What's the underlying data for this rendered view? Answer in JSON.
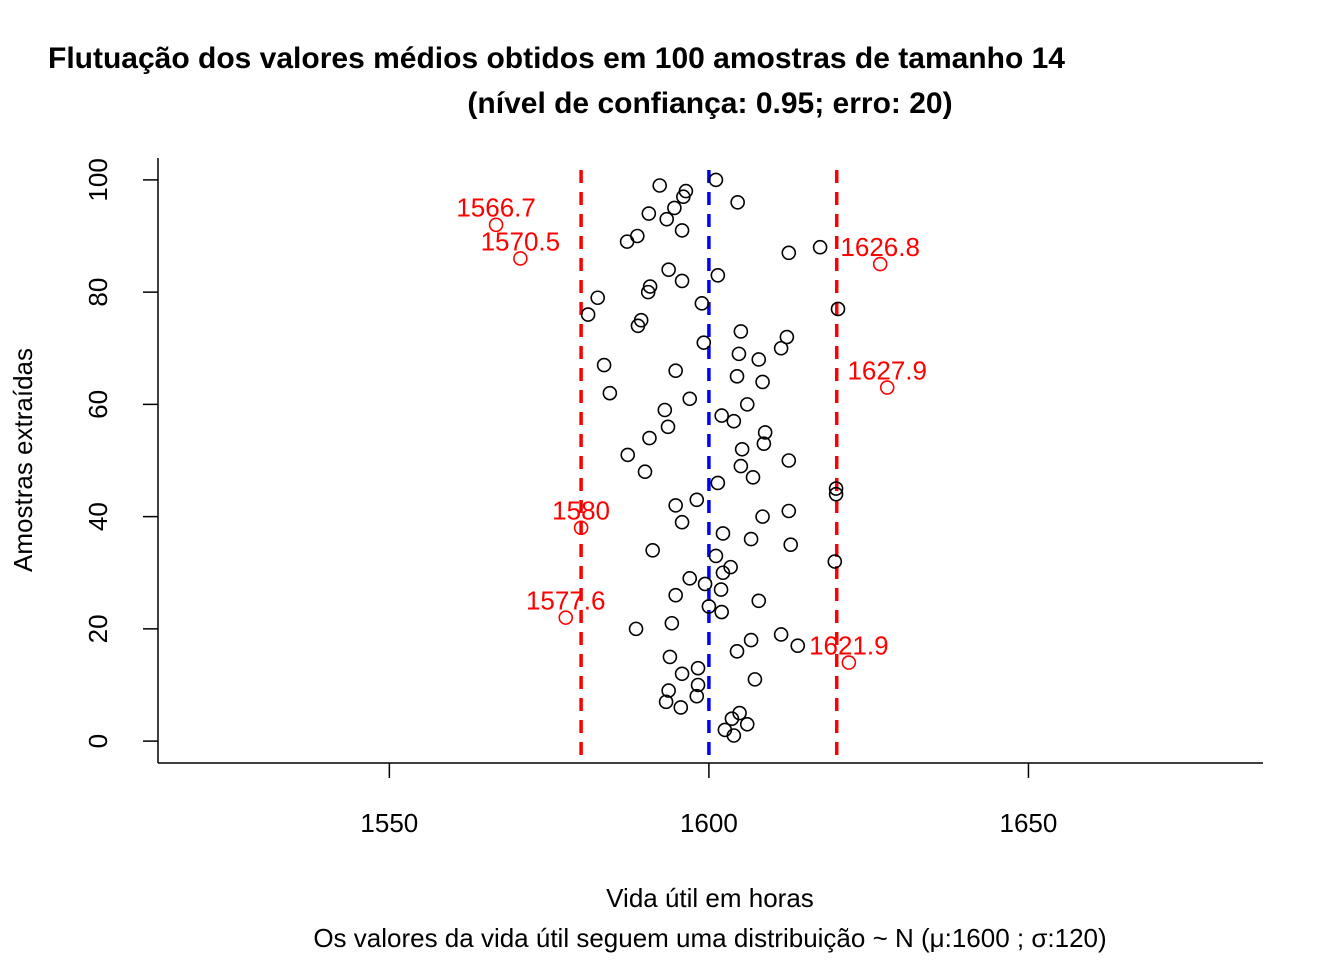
{
  "chart_data": {
    "type": "scatter",
    "title": "Flutuação dos valores médios obtidos em 100 amostras de tamanho 14",
    "subtitle": "(nível de confiança: 0.95; erro: 20)",
    "x_label": "Vida útil em horas",
    "x_sublabel": "Os valores da vida útil seguem uma distribuição ~ N  (μ:1600 ; σ:120)",
    "y_label": "Amostras extraídas",
    "xlim": [
      1513.8,
      1686.7
    ],
    "ylim": [
      -3.9,
      103.9
    ],
    "xticks": [
      1550,
      1600,
      1650
    ],
    "yticks": [
      0,
      20,
      40,
      60,
      80,
      100
    ],
    "vlines": [
      {
        "value": 1580,
        "color": "#ff0000"
      },
      {
        "value": 1600,
        "color": "#0000ff"
      },
      {
        "value": 1620,
        "color": "#ff0000"
      }
    ],
    "series": [
      {
        "color": "#000000",
        "x": [
          1603.9,
          1602.5,
          1606.0,
          1603.6,
          1604.8,
          1595.6,
          1593.3,
          1598.1,
          1593.7,
          1598.3,
          1607.2,
          1595.8,
          1598.3,
          1593.9,
          1604.4,
          1613.9,
          1606.6,
          1611.3,
          1588.6,
          1594.2,
          1602.0,
          1600.0,
          1607.8,
          1594.8,
          1601.9,
          1599.4,
          1597.0,
          1602.2,
          1603.4,
          1619.7,
          1601.1,
          1591.2,
          1612.8,
          1606.6,
          1602.2,
          1595.8,
          1608.4,
          1612.5,
          1594.8,
          1598.1,
          1619.9,
          1619.9,
          1601.4,
          1606.9,
          1590.0,
          1605.0,
          1612.5,
          1587.3,
          1605.2,
          1608.6,
          1590.7,
          1608.8,
          1593.6,
          1603.9,
          1602.0,
          1593.1,
          1606.0,
          1597.0,
          1584.5,
          1608.4,
          1604.4,
          1594.8,
          1583.6,
          1607.8,
          1604.7,
          1611.3,
          1599.2,
          1612.2,
          1605.0,
          1588.9,
          1589.4,
          1581.1,
          1620.2,
          1598.9,
          1582.6,
          1590.5,
          1590.8,
          1595.8,
          1601.4,
          1593.7,
          1612.5,
          1617.4,
          1587.2,
          1588.8,
          1595.8,
          1593.4,
          1590.6,
          1594.6,
          1604.5,
          1596.0,
          1596.4,
          1592.3,
          1601.1
        ],
        "y": [
          1,
          2,
          3,
          4,
          5,
          6,
          7,
          8,
          9,
          10,
          11,
          12,
          13,
          15,
          16,
          17,
          18,
          19,
          20,
          21,
          23,
          24,
          25,
          26,
          27,
          28,
          29,
          30,
          31,
          32,
          33,
          34,
          35,
          36,
          37,
          39,
          40,
          41,
          42,
          43,
          44,
          45,
          46,
          47,
          48,
          49,
          50,
          51,
          52,
          53,
          54,
          55,
          56,
          57,
          58,
          59,
          60,
          61,
          62,
          64,
          65,
          66,
          67,
          68,
          69,
          70,
          71,
          72,
          73,
          74,
          75,
          76,
          77,
          78,
          79,
          80,
          81,
          82,
          83,
          84,
          87,
          88,
          89,
          90,
          91,
          93,
          94,
          95,
          96,
          97,
          98,
          99,
          100
        ]
      },
      {
        "color": "#ff0000",
        "x": [
          1566.7,
          1570.5,
          1626.8,
          1627.9,
          1580,
          1577.6,
          1621.9
        ],
        "y": [
          92,
          86,
          85,
          63,
          38,
          22,
          14
        ]
      }
    ]
  }
}
